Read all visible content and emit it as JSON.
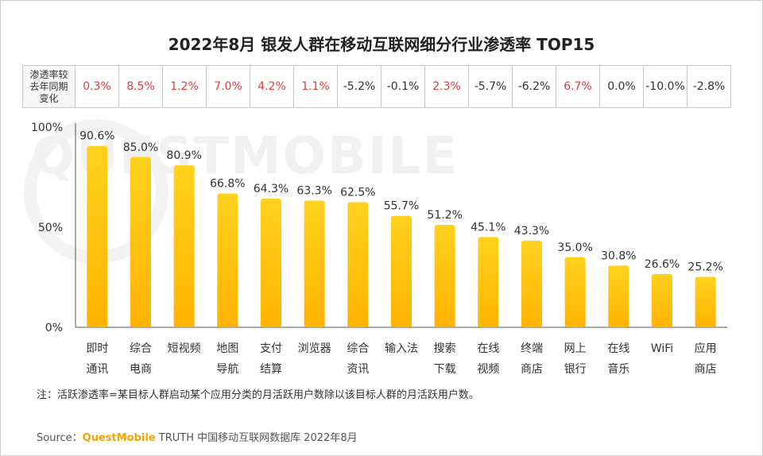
{
  "title": "2022年8月 银发人群在移动互联网细分行业渗透率 TOP15",
  "watermark": "QUESTMOBILE",
  "yoy": {
    "header": [
      "渗透率较",
      "去年同期",
      "变化"
    ],
    "cells": [
      {
        "value": "0.3%",
        "color": "#e53935"
      },
      {
        "value": "8.5%",
        "color": "#e53935"
      },
      {
        "value": "1.2%",
        "color": "#e53935"
      },
      {
        "value": "7.0%",
        "color": "#e53935"
      },
      {
        "value": "4.2%",
        "color": "#e53935"
      },
      {
        "value": "1.1%",
        "color": "#e53935"
      },
      {
        "value": "-5.2%",
        "color": "#333333"
      },
      {
        "value": "-0.1%",
        "color": "#333333"
      },
      {
        "value": "2.3%",
        "color": "#e53935"
      },
      {
        "value": "-5.7%",
        "color": "#333333"
      },
      {
        "value": "-6.2%",
        "color": "#333333"
      },
      {
        "value": "6.7%",
        "color": "#e53935"
      },
      {
        "value": "0.0%",
        "color": "#333333"
      },
      {
        "value": "-10.0%",
        "color": "#333333"
      },
      {
        "value": "-2.8%",
        "color": "#333333"
      }
    ]
  },
  "chart_data": {
    "type": "bar",
    "title": "2022年8月 银发人群在移动互联网细分行业渗透率 TOP15",
    "categories": [
      [
        "即时",
        "通讯"
      ],
      [
        "综合",
        "电商"
      ],
      [
        "短视频"
      ],
      [
        "地图",
        "导航"
      ],
      [
        "支付",
        "结算"
      ],
      [
        "浏览器"
      ],
      [
        "综合",
        "资讯"
      ],
      [
        "输入法"
      ],
      [
        "搜索",
        "下载"
      ],
      [
        "在线",
        "视频"
      ],
      [
        "终端",
        "商店"
      ],
      [
        "网上",
        "银行"
      ],
      [
        "在线",
        "音乐"
      ],
      [
        "WiFi"
      ],
      [
        "应用",
        "商店"
      ]
    ],
    "values": [
      90.6,
      85.0,
      80.9,
      66.8,
      64.3,
      63.3,
      62.5,
      55.7,
      51.2,
      45.1,
      43.3,
      35.0,
      30.8,
      26.6,
      25.2
    ],
    "value_labels": [
      "90.6%",
      "85.0%",
      "80.9%",
      "66.8%",
      "64.3%",
      "63.3%",
      "62.5%",
      "55.7%",
      "51.2%",
      "45.1%",
      "43.3%",
      "35.0%",
      "30.8%",
      "26.6%",
      "25.2%"
    ],
    "y_ticks": [
      {
        "value": 0,
        "label": "0%"
      },
      {
        "value": 50,
        "label": "50%"
      },
      {
        "value": 100,
        "label": "100%"
      }
    ],
    "ylim": [
      0,
      100
    ],
    "bar_color_top": "#ffd21f",
    "bar_color_bottom": "#ffb300",
    "xlabel": "",
    "ylabel": "",
    "grid": false
  },
  "note": "注：活跃渗透率=某目标人群启动某个应用分类的月活跃用户数除以该目标人群的月活跃用户数。",
  "source": {
    "prefix": "Source：",
    "brand": "QuestMobile",
    "rest": " TRUTH 中国移动互联网数据库 2022年8月"
  }
}
